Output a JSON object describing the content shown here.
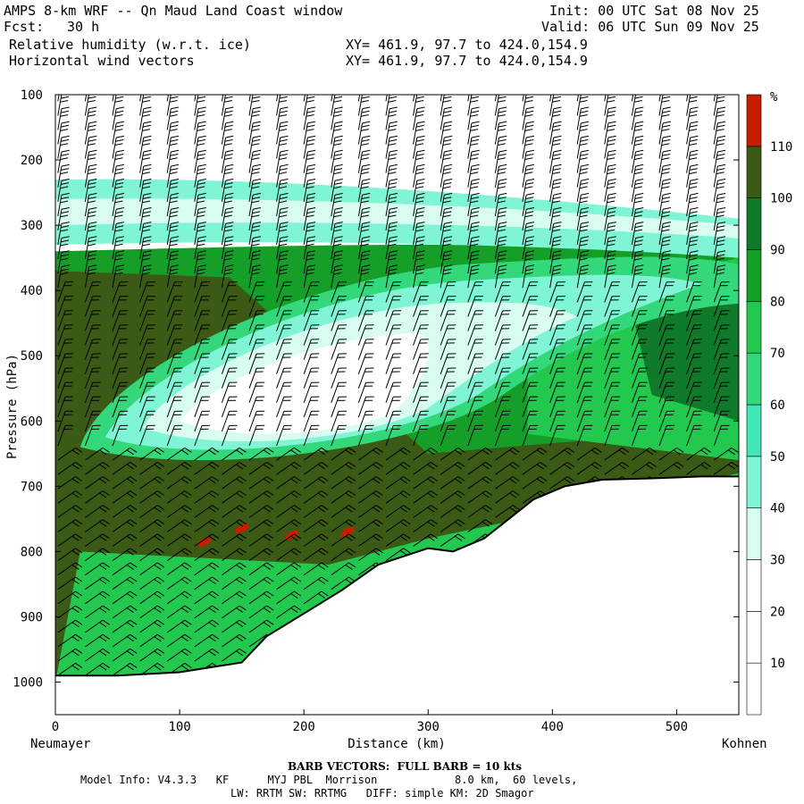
{
  "header": {
    "title": "AMPS 8-km WRF -- Qn Maud Land Coast window",
    "fcst_label": "Fcst:",
    "fcst_value": "30 h",
    "init": "Init: 00 UTC Sat 08 Nov 25",
    "valid": "Valid: 06 UTC Sun 09 Nov 25",
    "field1": "Relative humidity (w.r.t. ice)",
    "field2": "Horizontal wind vectors",
    "xy1": "XY= 461.9, 97.7 to 424.0,154.9",
    "xy2": "XY= 461.9, 97.7 to 424.0,154.9"
  },
  "footer": {
    "barb_note": "BARB VECTORS:  FULL BARB = 10 kts",
    "model_line1": "Model Info: V4.3.3   KF      MYJ PBL  Morrison            8.0 km,  60 levels,",
    "model_line2": "LW: RRTM SW: RRTMG   DIFF: simple KM: 2D Smagor"
  },
  "chart_data": {
    "type": "heatmap",
    "title": "Relative humidity (w.r.t. ice)",
    "xlabel": "Distance (km)",
    "ylabel": "Pressure (hPa)",
    "x_start_label": "Neumayer",
    "x_end_label": "Kohnen",
    "xlim": [
      0,
      550
    ],
    "ylim": [
      1050,
      100
    ],
    "xticks": [
      "0",
      "100",
      "200",
      "300",
      "400",
      "500"
    ],
    "yticks": [
      "100",
      "200",
      "300",
      "400",
      "500",
      "600",
      "700",
      "800",
      "900",
      "1000"
    ],
    "colorbar": {
      "unit": "%",
      "levels": [
        "10",
        "20",
        "30",
        "40",
        "50",
        "60",
        "70",
        "80",
        "90",
        "100",
        "110"
      ],
      "colors": [
        "#ffffff",
        "#ffffff",
        "#ffffff",
        "#d8fcf0",
        "#80f5d5",
        "#40e6b4",
        "#33d87a",
        "#22c94e",
        "#159e28",
        "#0f7a2a",
        "#3a5a15",
        "#c81e00"
      ]
    },
    "terrain_surface_hPa": [
      [
        0,
        990
      ],
      [
        50,
        990
      ],
      [
        100,
        985
      ],
      [
        150,
        970
      ],
      [
        170,
        930
      ],
      [
        200,
        895
      ],
      [
        230,
        860
      ],
      [
        260,
        820
      ],
      [
        300,
        795
      ],
      [
        320,
        800
      ],
      [
        345,
        780
      ],
      [
        365,
        750
      ],
      [
        385,
        720
      ],
      [
        410,
        700
      ],
      [
        440,
        690
      ],
      [
        480,
        688
      ],
      [
        520,
        685
      ],
      [
        550,
        685
      ]
    ],
    "wind_barb_note": "FULL BARB = 10 kts"
  }
}
